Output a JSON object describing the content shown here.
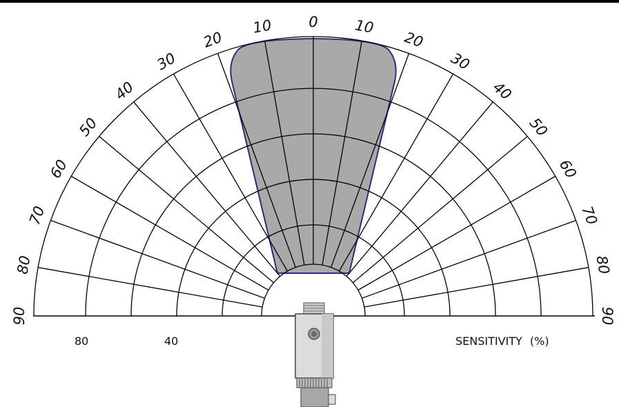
{
  "diagram": {
    "angle_labels_left": [
      "90",
      "80",
      "70",
      "60",
      "50",
      "40",
      "30",
      "20",
      "10"
    ],
    "center_label": "0",
    "angle_labels_right": [
      "10",
      "20",
      "30",
      "40",
      "50",
      "60",
      "70",
      "80",
      "90"
    ],
    "sensitivity_labels": [
      "80",
      "40"
    ],
    "sensitivity_title": "SENSITIVITY",
    "sensitivity_unit": "(%)",
    "colors": {
      "beam_fill": "#a9a9a9",
      "beam_outline": "#2b2d82",
      "grid_line": "#000000",
      "sensor_body": "#d9d9d9"
    },
    "icons": [
      "sensor-icon"
    ]
  }
}
